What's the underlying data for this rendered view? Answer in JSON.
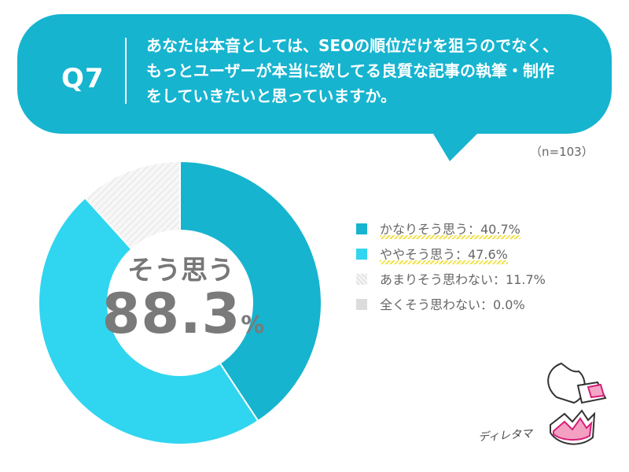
{
  "question": {
    "label": "Q7",
    "lines": [
      "あなたは本音としては、SEOの順位だけを狙うのでなく、",
      "もっとユーザーが本当に欲してる良質な記事の執筆・制作",
      "をしていきたいと思っていますか。"
    ]
  },
  "sample_size": "（n=103）",
  "center": {
    "label": "そう思う",
    "value": "88.3",
    "unit": "%"
  },
  "mascot": {
    "name": "ディレタマ"
  },
  "colors": {
    "bubble": "#16b4cf",
    "strongly_agree": "#16b4cf",
    "somewhat_agree": "#30d5ef",
    "not_really": "#f1f1f1",
    "not_at_all": "#dcdcdc"
  },
  "chart_data": {
    "type": "pie",
    "variant": "donut",
    "categories": [
      "かなりそう思う",
      "ややそう思う",
      "あまりそう思わない",
      "全くそう思わない"
    ],
    "values": [
      40.7,
      47.6,
      11.7,
      0.0
    ],
    "legend": [
      {
        "text": "かなりそう思う：40.7%"
      },
      {
        "text": "ややそう思う：47.6%"
      },
      {
        "text": "あまりそう思わない：11.7%"
      },
      {
        "text": "全くそう思わない：0.0%"
      }
    ],
    "legend_placement": "right"
  }
}
